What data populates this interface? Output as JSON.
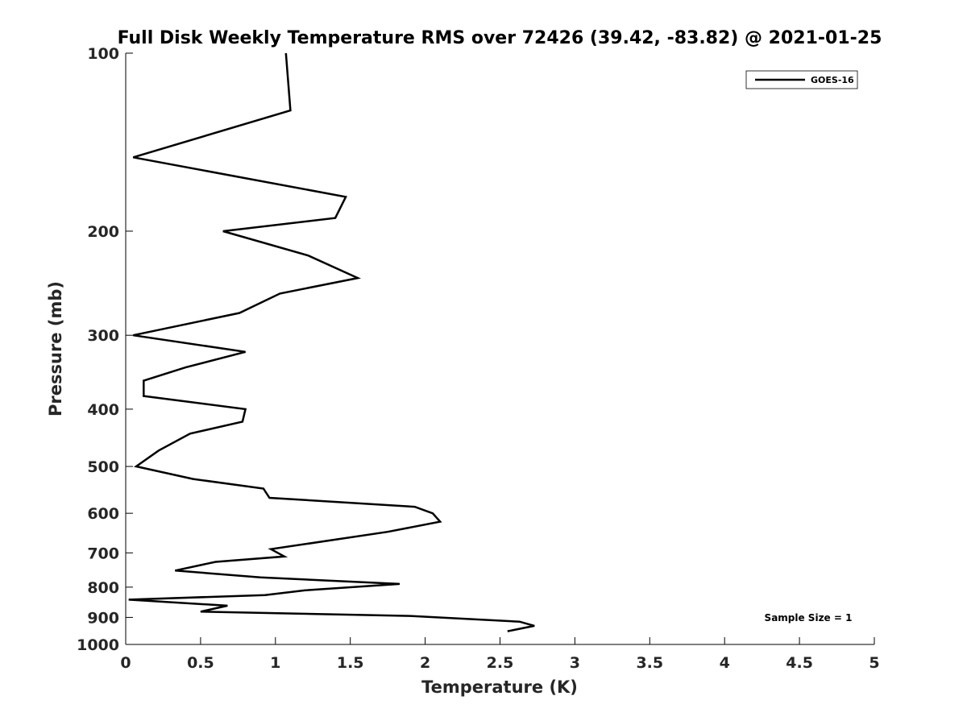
{
  "chart_data": {
    "type": "line",
    "title": "Full Disk Weekly Temperature RMS over 72426 (39.42, -83.82) @ 2021-01-25",
    "xlabel": "Temperature (K)",
    "ylabel": "Pressure (mb)",
    "xlim": [
      0,
      5
    ],
    "ylim": [
      100,
      1000
    ],
    "y_scale": "log",
    "y_reversed": true,
    "x_ticks": [
      0,
      0.5,
      1,
      1.5,
      2,
      2.5,
      3,
      3.5,
      4,
      4.5,
      5
    ],
    "x_tick_labels": [
      "0",
      "0.5",
      "1",
      "1.5",
      "2",
      "2.5",
      "3",
      "3.5",
      "4",
      "4.5",
      "5"
    ],
    "y_ticks": [
      100,
      200,
      300,
      400,
      500,
      600,
      700,
      800,
      900,
      1000
    ],
    "y_tick_labels": [
      "100",
      "200",
      "300",
      "400",
      "500",
      "600",
      "700",
      "800",
      "900",
      "1000"
    ],
    "grid": false,
    "legend_position": "top-right",
    "annotation": "Sample Size = 1",
    "series": [
      {
        "name": "GOES-16",
        "color": "#000000",
        "points": [
          [
            1.07,
            100
          ],
          [
            1.1,
            125
          ],
          [
            0.05,
            150
          ],
          [
            1.47,
            175
          ],
          [
            1.4,
            190
          ],
          [
            0.65,
            200
          ],
          [
            1.22,
            220
          ],
          [
            1.55,
            240
          ],
          [
            1.03,
            255
          ],
          [
            0.76,
            275
          ],
          [
            0.05,
            300
          ],
          [
            0.8,
            320
          ],
          [
            0.4,
            340
          ],
          [
            0.12,
            358
          ],
          [
            0.12,
            380
          ],
          [
            0.8,
            400
          ],
          [
            0.78,
            420
          ],
          [
            0.43,
            440
          ],
          [
            0.22,
            470
          ],
          [
            0.07,
            500
          ],
          [
            0.45,
            525
          ],
          [
            0.92,
            545
          ],
          [
            0.96,
            565
          ],
          [
            1.93,
            585
          ],
          [
            2.05,
            600
          ],
          [
            2.1,
            620
          ],
          [
            1.75,
            645
          ],
          [
            0.97,
            690
          ],
          [
            1.06,
            710
          ],
          [
            0.6,
            725
          ],
          [
            0.33,
            750
          ],
          [
            0.9,
            770
          ],
          [
            1.83,
            790
          ],
          [
            1.2,
            810
          ],
          [
            0.93,
            825
          ],
          [
            0.02,
            840
          ],
          [
            0.68,
            860
          ],
          [
            0.5,
            880
          ],
          [
            1.9,
            895
          ],
          [
            2.63,
            915
          ],
          [
            2.73,
            930
          ],
          [
            2.55,
            950
          ]
        ]
      }
    ]
  }
}
